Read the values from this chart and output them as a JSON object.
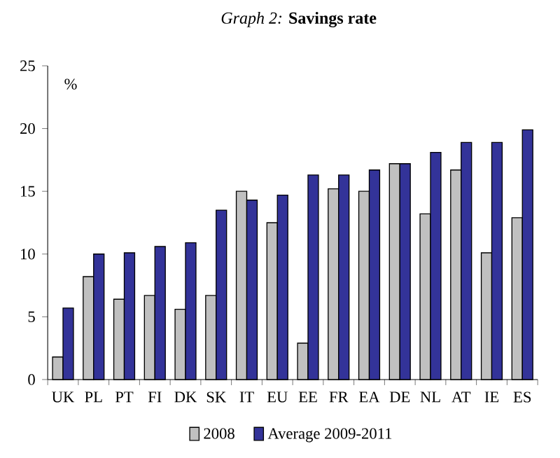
{
  "chart_data": {
    "type": "bar",
    "title": "*Graph 2:* **Savings rate**",
    "ylabel": "%",
    "categories": [
      "UK",
      "PL",
      "PT",
      "FI",
      "DK",
      "SK",
      "IT",
      "EU",
      "EE",
      "FR",
      "EA",
      "DE",
      "NL",
      "AT",
      "IE",
      "ES"
    ],
    "series": [
      {
        "name": "2008",
        "color": "#c0c0c0",
        "values": [
          1.8,
          8.2,
          6.4,
          6.7,
          5.6,
          6.7,
          15.0,
          12.5,
          2.9,
          15.2,
          15.0,
          17.2,
          13.2,
          16.7,
          10.1,
          12.9
        ]
      },
      {
        "name": "Average 2009-2011",
        "color": "#333399",
        "values": [
          5.7,
          10.0,
          10.1,
          10.6,
          10.9,
          13.5,
          14.3,
          14.7,
          16.3,
          16.3,
          16.7,
          17.2,
          18.1,
          18.9,
          18.9,
          19.9
        ]
      }
    ],
    "ylim": [
      0,
      25
    ],
    "yticks": [
      0,
      5,
      10,
      15,
      20,
      25
    ],
    "grid": false,
    "legend": "bottom"
  }
}
